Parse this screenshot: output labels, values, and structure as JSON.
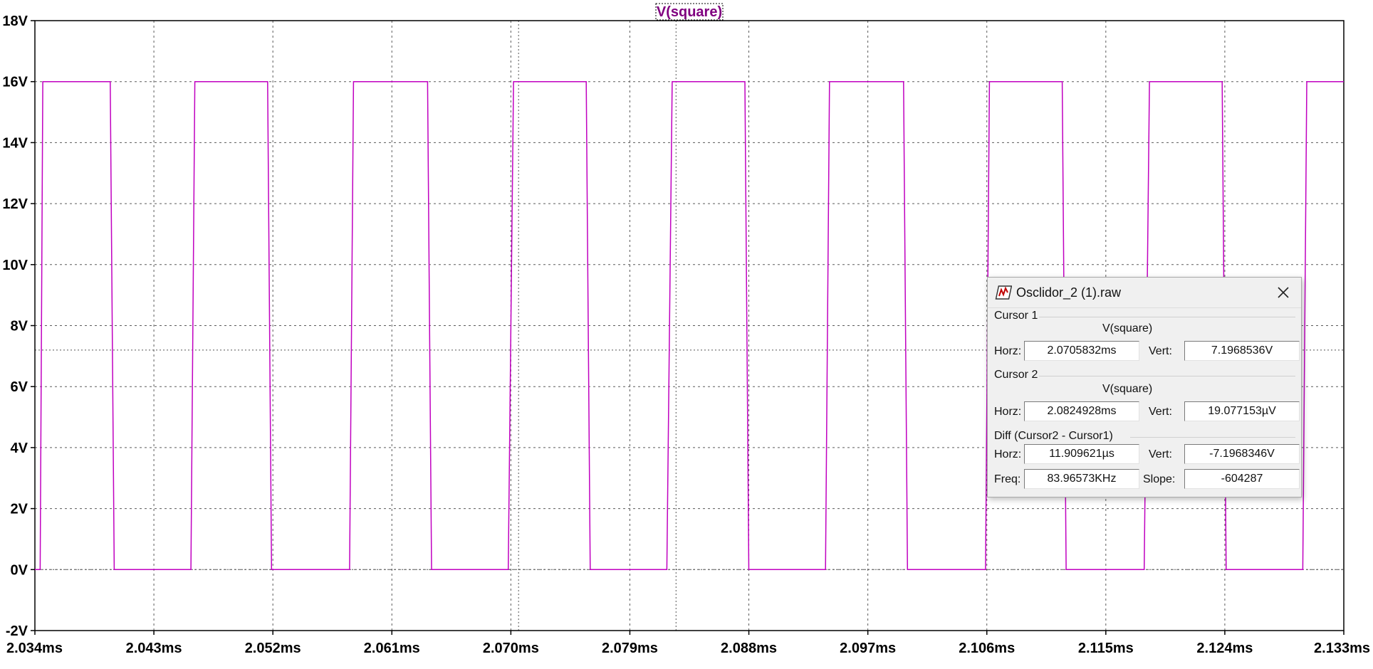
{
  "chart_data": {
    "type": "line",
    "title": "V(square)",
    "xlabel": "",
    "ylabel": "",
    "xlim": [
      2.034,
      2.133
    ],
    "ylim": [
      -2,
      18
    ],
    "x_unit": "ms",
    "y_unit": "V",
    "grid": true,
    "x_ticks": [
      "2.034ms",
      "2.043ms",
      "2.052ms",
      "2.061ms",
      "2.070ms",
      "2.079ms",
      "2.088ms",
      "2.097ms",
      "2.106ms",
      "2.115ms",
      "2.124ms",
      "2.133ms"
    ],
    "y_ticks": [
      "18V",
      "16V",
      "14V",
      "12V",
      "10V",
      "8V",
      "6V",
      "4V",
      "2V",
      "0V",
      "-2V"
    ],
    "x_tick_values": [
      2.034,
      2.043,
      2.052,
      2.061,
      2.07,
      2.079,
      2.088,
      2.097,
      2.106,
      2.115,
      2.124,
      2.133
    ],
    "y_tick_values": [
      18,
      16,
      14,
      12,
      10,
      8,
      6,
      4,
      2,
      0,
      -2
    ],
    "series": [
      {
        "name": "V(square)",
        "color": "#c000c0",
        "x": [
          2.034,
          2.0344,
          2.0346,
          2.0395,
          2.0397,
          2.04,
          2.0458,
          2.0461,
          2.0516,
          2.0519,
          2.0578,
          2.0581,
          2.0637,
          2.064,
          2.0698,
          2.0702,
          2.0757,
          2.076,
          2.0818,
          2.0822,
          2.0877,
          2.088,
          2.0938,
          2.0941,
          2.0997,
          2.1,
          2.1059,
          2.1062,
          2.1117,
          2.112,
          2.1179,
          2.1183,
          2.1238,
          2.1241,
          2.1299,
          2.1302,
          2.133
        ],
        "y": [
          0,
          0,
          16,
          16,
          16,
          0,
          0,
          16,
          16,
          0,
          0,
          16,
          16,
          0,
          0,
          16,
          16,
          0,
          0,
          16,
          16,
          0,
          0,
          16,
          16,
          0,
          0,
          16,
          16,
          0,
          0,
          16,
          16,
          0,
          0,
          16,
          16
        ]
      }
    ],
    "cursor_lines": {
      "horizontal_v": [
        7.1968536,
        1.9077153e-05
      ],
      "vertical_ms": [
        2.0705832,
        2.0824928
      ],
      "color": "#555555"
    },
    "colors": {
      "grid": "#5a5a5a",
      "axis": "#000000",
      "trace": "#c000c0",
      "title": "#800080",
      "background": "#ffffff"
    }
  },
  "dialog": {
    "title": "Osclidor_2 (1).raw",
    "icon": "ltspice-waveform-icon",
    "close_icon": "close-icon",
    "cursor1": {
      "label": "Cursor 1",
      "trace": "V(square)",
      "horz_label": "Horz:",
      "horz": "2.0705832ms",
      "vert_label": "Vert:",
      "vert": "7.1968536V"
    },
    "cursor2": {
      "label": "Cursor 2",
      "trace": "V(square)",
      "horz_label": "Horz:",
      "horz": "2.0824928ms",
      "vert_label": "Vert:",
      "vert": "19.077153µV"
    },
    "diff": {
      "label": "Diff (Cursor2 - Cursor1)",
      "horz_label": "Horz:",
      "horz": "11.909621µs",
      "vert_label": "Vert:",
      "vert": "-7.1968346V",
      "freq_label": "Freq:",
      "freq": "83.96573KHz",
      "slope_label": "Slope:",
      "slope": "-604287"
    }
  }
}
